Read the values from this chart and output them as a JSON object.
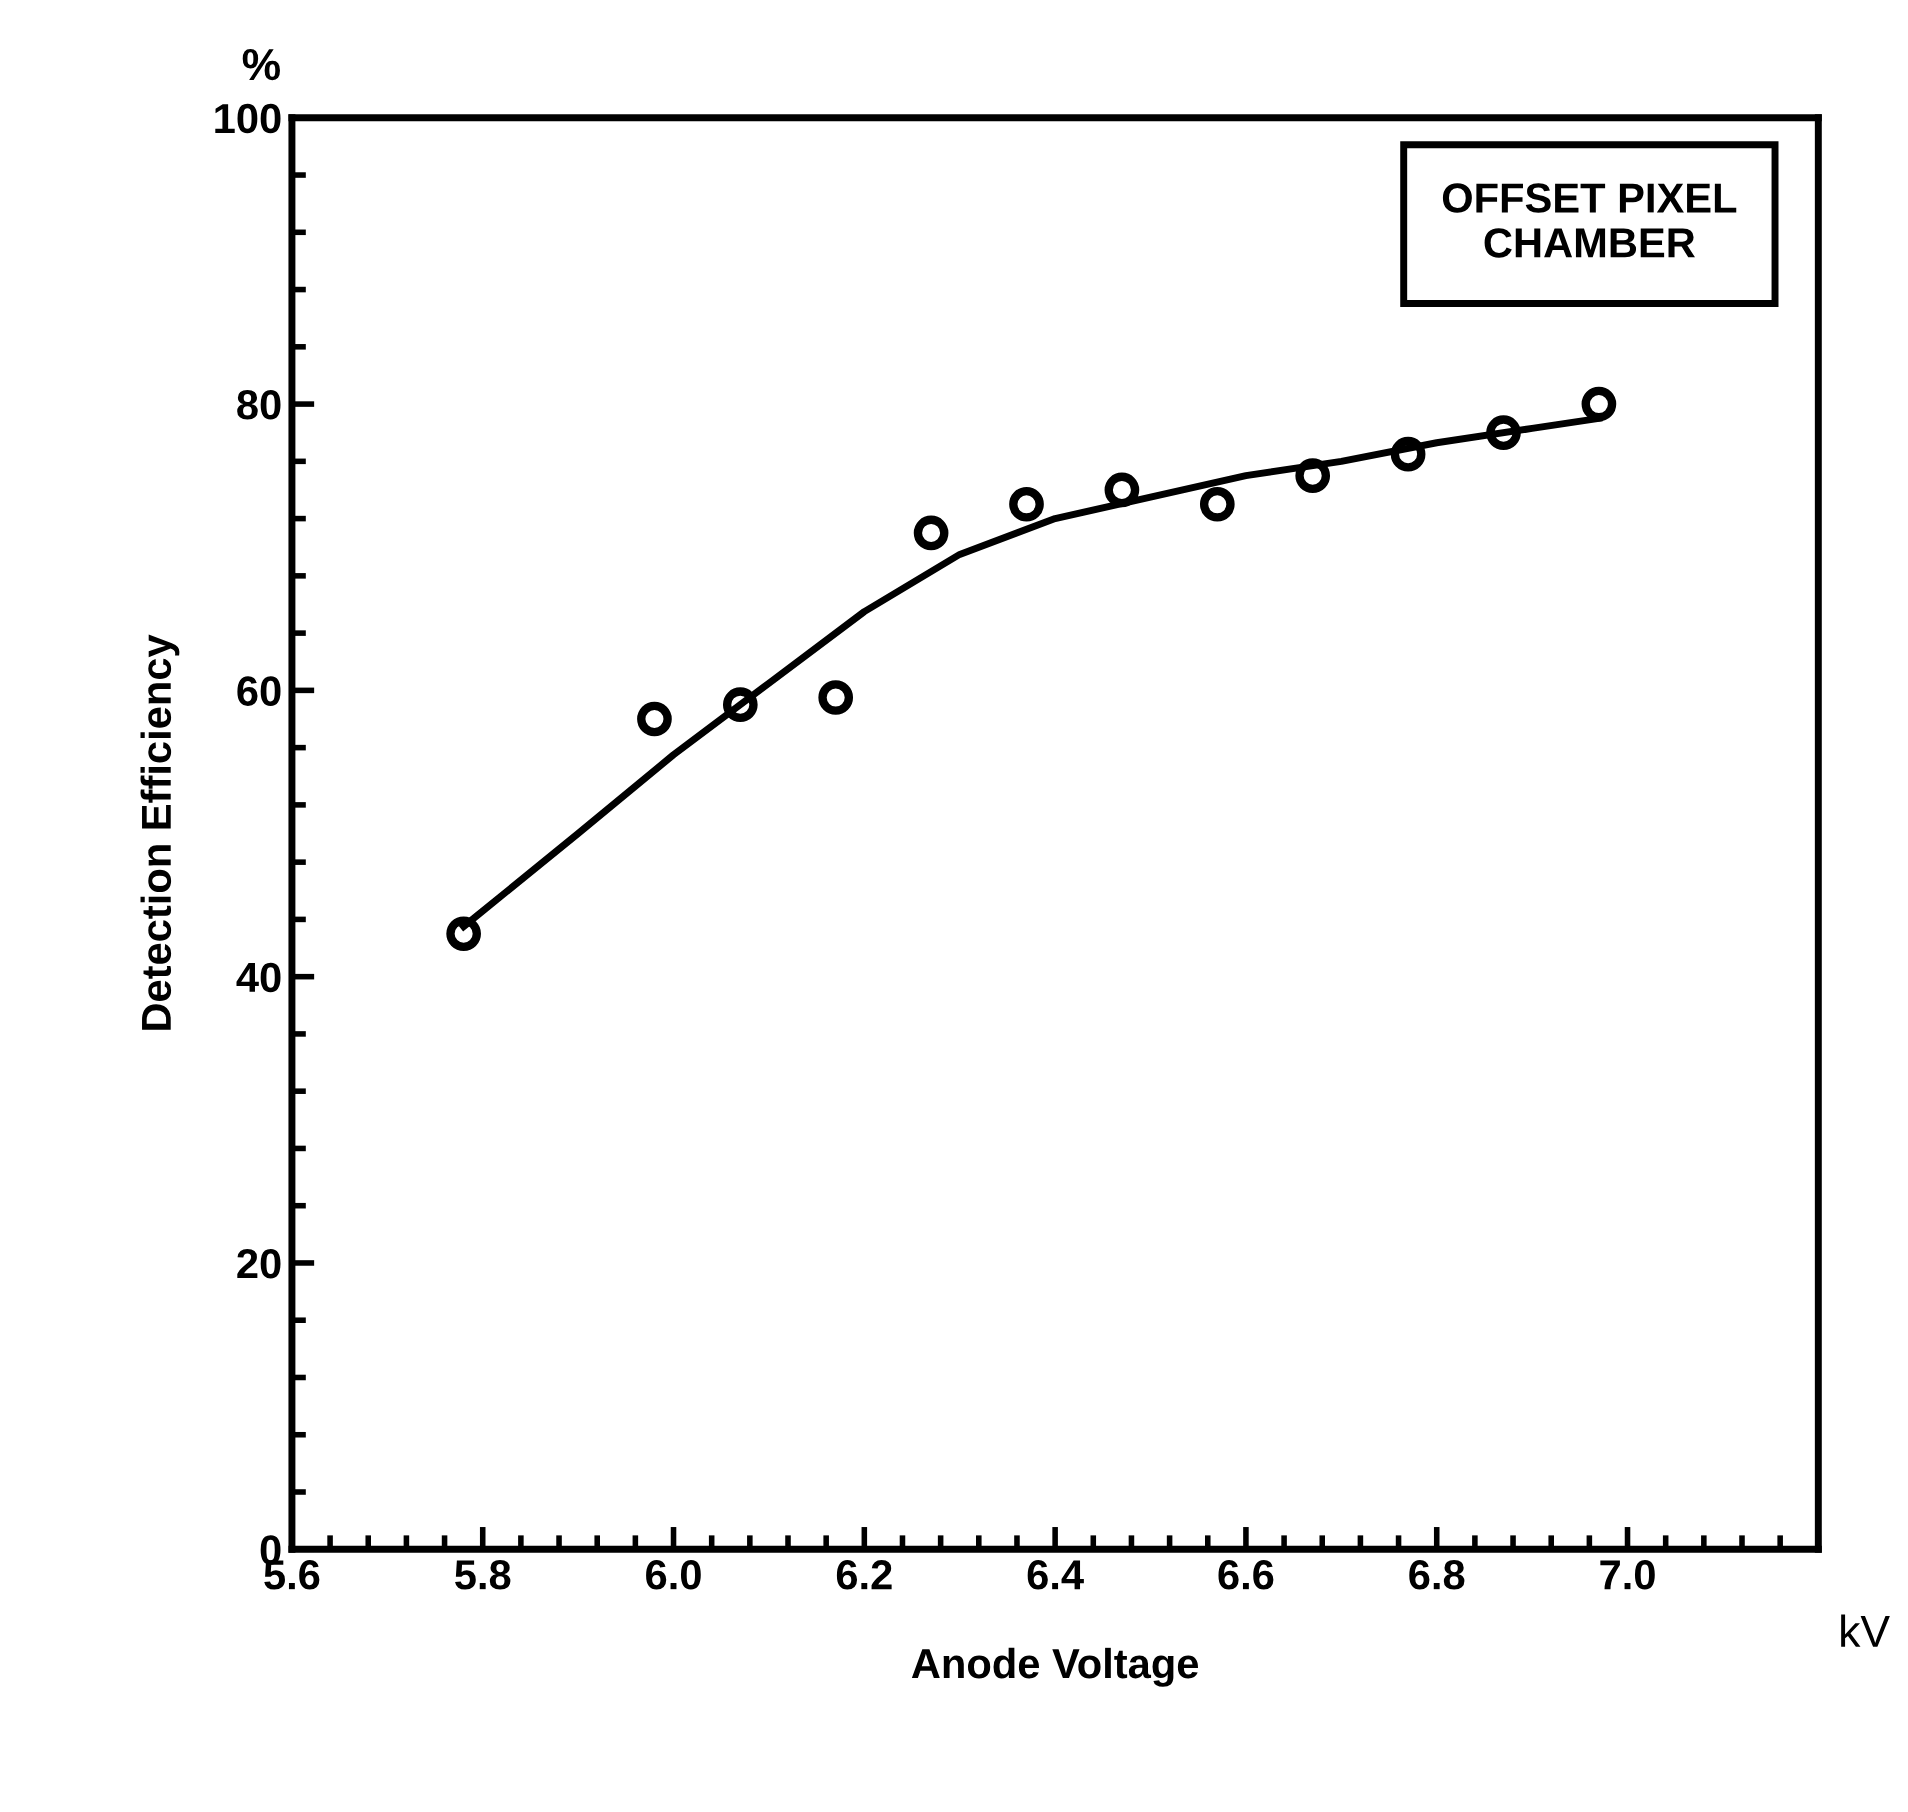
{
  "chart_data": {
    "type": "scatter",
    "xlabel": "Anode Voltage",
    "ylabel": "Detection Efficiency",
    "annotations": [
      "OFFSET PIXEL\nCHAMBER",
      "%",
      "kV"
    ],
    "xlim": [
      5.6,
      7.2
    ],
    "xticks": [
      {
        "value": 5.6,
        "label": "5.6"
      },
      {
        "value": 5.8,
        "label": "5.8"
      },
      {
        "value": 6.0,
        "label": "6.0"
      },
      {
        "value": 6.2,
        "label": "6.2"
      },
      {
        "value": 6.4,
        "label": "6.4"
      },
      {
        "value": 6.6,
        "label": "6.6"
      },
      {
        "value": 6.8,
        "label": "6.8"
      },
      {
        "value": 7.0,
        "label": "7.0"
      }
    ],
    "ylim": [
      0,
      100
    ],
    "yticks": [
      0,
      20,
      40,
      60,
      80,
      100
    ],
    "grid": false,
    "series": [
      {
        "color": "#000000",
        "marker": "circle",
        "x": [
          5.78,
          5.98,
          6.07,
          6.17,
          6.27,
          6.37,
          6.47,
          6.57,
          6.67,
          6.77,
          6.87,
          6.97
        ],
        "values": [
          43,
          58,
          59,
          59.5,
          71,
          73,
          74,
          73,
          75,
          76.5,
          78,
          80
        ]
      },
      {
        "type": "line",
        "color": "#000000",
        "marker": "none",
        "line_style": "solid",
        "x": [
          5.78,
          5.9,
          6.0,
          6.1,
          6.2,
          6.3,
          6.4,
          6.5,
          6.6,
          6.7,
          6.8,
          6.9,
          6.97
        ],
        "values": [
          43.5,
          50,
          55.5,
          60.5,
          65.5,
          69.5,
          72,
          73.5,
          75,
          76,
          77.3,
          78.3,
          79
        ]
      }
    ]
  }
}
